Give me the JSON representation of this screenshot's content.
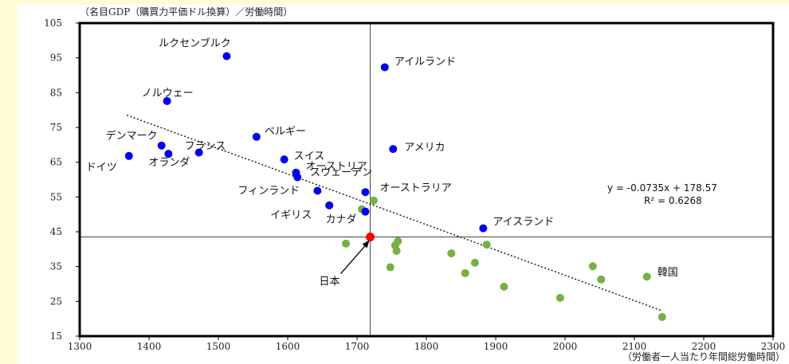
{
  "chart_data": {
    "type": "scatter",
    "ylabel": "（名目GDP（購買力平価ドル換算）／労働時間）",
    "xlabel": "（労働者一人当たり年間総労働時間）",
    "xlim": [
      1300,
      2300
    ],
    "ylim": [
      15,
      105
    ],
    "xticks": [
      1300,
      1400,
      1500,
      1600,
      1700,
      1800,
      1900,
      2000,
      2100,
      2200,
      2300
    ],
    "yticks": [
      15,
      25,
      35,
      45,
      55,
      65,
      75,
      85,
      95,
      105
    ],
    "reference_lines": {
      "x": 1719,
      "y": 43.5
    },
    "trendline": {
      "equation": "y = -0.0735x + 178.57",
      "r2": "R² = 0.6268",
      "x_range": [
        1368,
        2140
      ],
      "style": "dotted"
    },
    "colors": {
      "labeled": "#0000ee",
      "other": "#77b043",
      "japan": "#ff0000"
    },
    "labeled_points": [
      {
        "name": "ルクセンブルク",
        "x": 1512,
        "y": 95.5
      },
      {
        "name": "アイルランド",
        "x": 1740,
        "y": 92.3
      },
      {
        "name": "ノルウェー",
        "x": 1426,
        "y": 82.6
      },
      {
        "name": "ベルギー",
        "x": 1555,
        "y": 72.3
      },
      {
        "name": "アメリカ",
        "x": 1752,
        "y": 68.8
      },
      {
        "name": "デンマーク",
        "x": 1418,
        "y": 69.8
      },
      {
        "name": "フランス",
        "x": 1472,
        "y": 67.8
      },
      {
        "name": "オランダ",
        "x": 1428,
        "y": 67.4
      },
      {
        "name": "ドイツ",
        "x": 1371,
        "y": 66.8
      },
      {
        "name": "スイス",
        "x": 1595,
        "y": 65.8
      },
      {
        "name": "オーストリア",
        "x": 1612,
        "y": 62.0
      },
      {
        "name": "スウェーデン",
        "x": 1614,
        "y": 60.7
      },
      {
        "name": "フィンランド",
        "x": 1643,
        "y": 56.8
      },
      {
        "name": "オーストラリア",
        "x": 1712,
        "y": 56.4
      },
      {
        "name": "イギリス",
        "x": 1660,
        "y": 52.6
      },
      {
        "name": "カナダ",
        "x": 1712,
        "y": 50.8
      },
      {
        "name": "アイスランド",
        "x": 1882,
        "y": 46.0
      },
      {
        "name": "日本",
        "x": 1719,
        "y": 43.5
      },
      {
        "name": "韓国",
        "x": 2140,
        "y": 20.5
      }
    ],
    "other_points": [
      {
        "x": 1684,
        "y": 41.6
      },
      {
        "x": 1707,
        "y": 51.5
      },
      {
        "x": 1724,
        "y": 54.0
      },
      {
        "x": 1748,
        "y": 34.8
      },
      {
        "x": 1755,
        "y": 41.1
      },
      {
        "x": 1757,
        "y": 39.5
      },
      {
        "x": 1759,
        "y": 42.3
      },
      {
        "x": 1836,
        "y": 38.8
      },
      {
        "x": 1856,
        "y": 33.1
      },
      {
        "x": 1870,
        "y": 36.1
      },
      {
        "x": 1887,
        "y": 41.3
      },
      {
        "x": 1912,
        "y": 29.2
      },
      {
        "x": 1993,
        "y": 26.0
      },
      {
        "x": 2040,
        "y": 35.1
      },
      {
        "x": 2052,
        "y": 31.3
      },
      {
        "x": 2118,
        "y": 32.1
      }
    ]
  }
}
